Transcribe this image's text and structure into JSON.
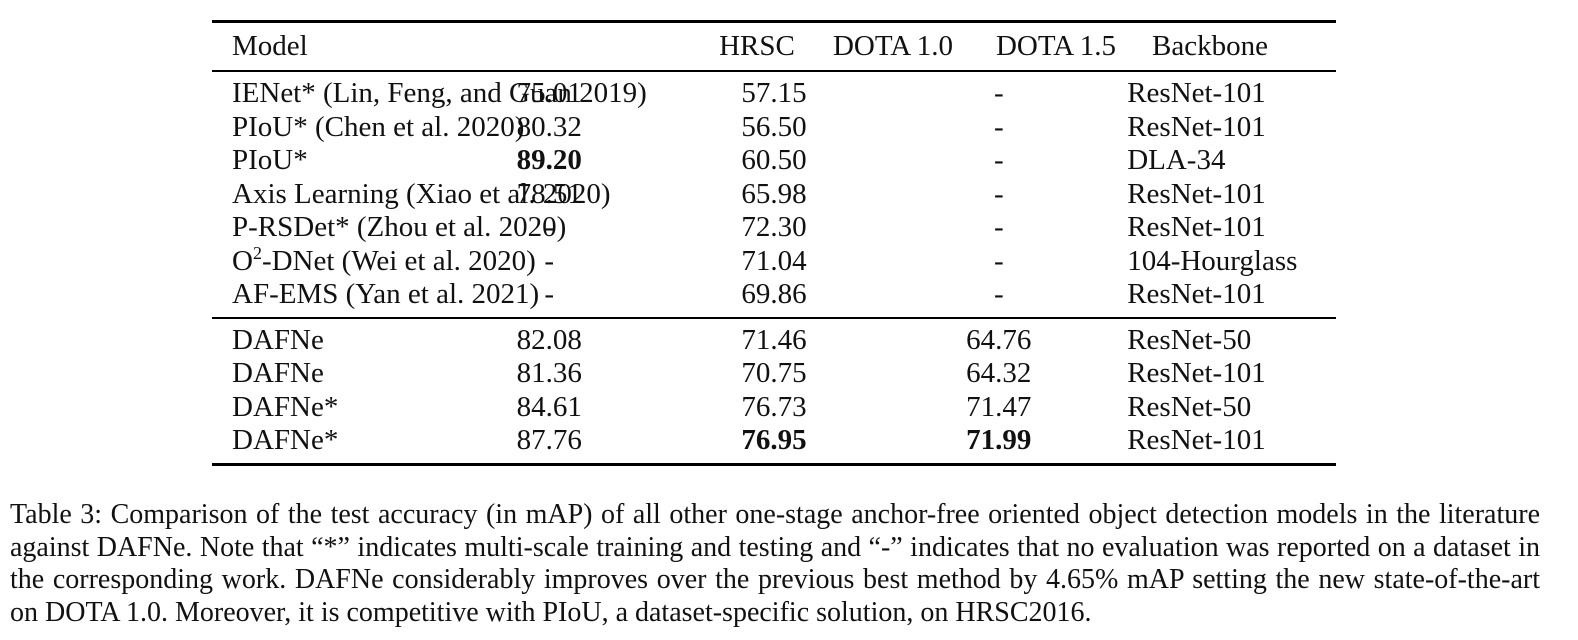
{
  "table": {
    "headers": {
      "model": "Model",
      "hrsc": "HRSC",
      "dota10": "DOTA 1.0",
      "dota15": "DOTA 1.5",
      "backbone": "Backbone"
    },
    "group1": [
      {
        "model": "IENet* (Lin, Feng, and Guan 2019)",
        "hrsc": "75.01",
        "dota10": "57.15",
        "dota15": "-",
        "backbone": "ResNet-101"
      },
      {
        "model": "PIoU* (Chen et al. 2020)",
        "hrsc": "80.32",
        "dota10": "56.50",
        "dota15": "-",
        "backbone": "ResNet-101"
      },
      {
        "model": "PIoU*",
        "hrsc": "89.20",
        "dota10": "60.50",
        "dota15": "-",
        "backbone": "DLA-34"
      },
      {
        "model": "Axis Learning (Xiao et al. 2020)",
        "hrsc": "78.51",
        "dota10": "65.98",
        "dota15": "-",
        "backbone": "ResNet-101"
      },
      {
        "model": "P-RSDet* (Zhou et al. 2020)",
        "hrsc": "-",
        "dota10": "72.30",
        "dota15": "-",
        "backbone": "ResNet-101"
      },
      {
        "model_prefix": "O",
        "model_sup": "2",
        "model_rest": "-DNet (Wei et al. 2020)",
        "hrsc": "-",
        "dota10": "71.04",
        "dota15": "-",
        "backbone": "104-Hourglass"
      },
      {
        "model": "AF-EMS (Yan et al. 2021)",
        "hrsc": "-",
        "dota10": "69.86",
        "dota15": "-",
        "backbone": "ResNet-101"
      }
    ],
    "group2": [
      {
        "model": "DAFNe",
        "hrsc": "82.08",
        "dota10": "71.46",
        "dota15": "64.76",
        "backbone": "ResNet-50"
      },
      {
        "model": "DAFNe",
        "hrsc": "81.36",
        "dota10": "70.75",
        "dota15": "64.32",
        "backbone": "ResNet-101"
      },
      {
        "model": "DAFNe*",
        "hrsc": "84.61",
        "dota10": "76.73",
        "dota15": "71.47",
        "backbone": "ResNet-50"
      },
      {
        "model": "DAFNe*",
        "hrsc": "87.76",
        "dota10": "76.95",
        "dota15": "71.99",
        "backbone": "ResNet-101"
      }
    ]
  },
  "caption": "Table 3: Comparison of the test accuracy (in mAP) of all other one-stage anchor-free oriented object detection models in the literature against DAFNe. Note that “*” indicates multi-scale training and testing and “-” indicates that no evaluation was reported on a dataset in the corresponding work. DAFNe considerably improves over the previous best method by 4.65% mAP setting the new state-of-the-art on DOTA 1.0. Moreover, it is competitive with PIoU, a dataset-specific solution, on HRSC2016."
}
